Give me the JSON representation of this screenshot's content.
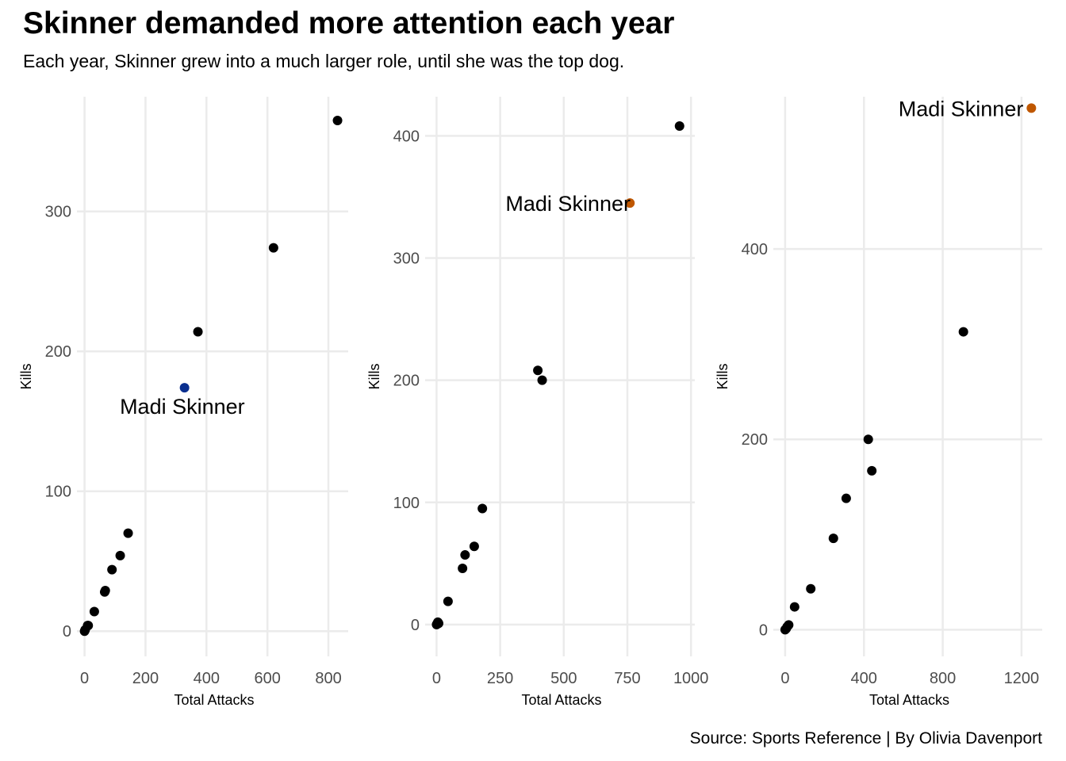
{
  "title": "Skinner demanded more attention each year",
  "subtitle": "Each year, Skinner grew into a much larger role, until she was the top dog.",
  "caption": "Source: Sports Reference | By Olivia Davenport",
  "colors": {
    "default_point": "#000000",
    "gridline": "#ebebeb"
  },
  "chart_data": [
    {
      "type": "scatter",
      "xlabel": "Total Attacks",
      "ylabel": "Kills",
      "xticks": [
        0,
        200,
        400,
        600,
        800
      ],
      "yticks": [
        0,
        100,
        200,
        300
      ],
      "xlim": [
        -25,
        865
      ],
      "ylim": [
        -18,
        382
      ],
      "points": [
        {
          "x": 0,
          "y": 0
        },
        {
          "x": 2,
          "y": 1
        },
        {
          "x": 10,
          "y": 4
        },
        {
          "x": 12,
          "y": 4
        },
        {
          "x": 32,
          "y": 14
        },
        {
          "x": 66,
          "y": 28
        },
        {
          "x": 68,
          "y": 29
        },
        {
          "x": 90,
          "y": 44
        },
        {
          "x": 117,
          "y": 54
        },
        {
          "x": 143,
          "y": 70
        },
        {
          "x": 328,
          "y": 174,
          "highlight": true
        },
        {
          "x": 372,
          "y": 214
        },
        {
          "x": 620,
          "y": 274
        },
        {
          "x": 830,
          "y": 365
        }
      ],
      "highlight_color": "#0a2f8f",
      "annotation": {
        "text": "Madi Skinner",
        "x": 328,
        "y": 174
      }
    },
    {
      "type": "scatter",
      "xlabel": "Total Attacks",
      "ylabel": "Kills",
      "xticks": [
        0,
        250,
        500,
        750,
        1000
      ],
      "yticks": [
        0,
        100,
        200,
        300,
        400
      ],
      "xlim": [
        -45,
        1015
      ],
      "ylim": [
        -26,
        432
      ],
      "points": [
        {
          "x": 0,
          "y": 0
        },
        {
          "x": 3,
          "y": 1
        },
        {
          "x": 5,
          "y": 2
        },
        {
          "x": 8,
          "y": 1
        },
        {
          "x": 45,
          "y": 19
        },
        {
          "x": 102,
          "y": 46
        },
        {
          "x": 112,
          "y": 57
        },
        {
          "x": 148,
          "y": 64
        },
        {
          "x": 180,
          "y": 95
        },
        {
          "x": 398,
          "y": 208
        },
        {
          "x": 415,
          "y": 200
        },
        {
          "x": 760,
          "y": 345,
          "highlight": true
        },
        {
          "x": 955,
          "y": 408
        }
      ],
      "highlight_color": "#bf5700",
      "annotation": {
        "text": "Madi Skinner",
        "x": 760,
        "y": 345
      }
    },
    {
      "type": "scatter",
      "xlabel": "Total Attacks",
      "ylabel": "Kills",
      "xticks": [
        0,
        400,
        800,
        1200
      ],
      "yticks": [
        0,
        200,
        400
      ],
      "xlim": [
        -60,
        1305
      ],
      "ylim": [
        -28,
        560
      ],
      "points": [
        {
          "x": 0,
          "y": 0
        },
        {
          "x": 5,
          "y": 1
        },
        {
          "x": 10,
          "y": 3
        },
        {
          "x": 18,
          "y": 5
        },
        {
          "x": 48,
          "y": 24
        },
        {
          "x": 130,
          "y": 43
        },
        {
          "x": 245,
          "y": 96
        },
        {
          "x": 310,
          "y": 138
        },
        {
          "x": 422,
          "y": 200
        },
        {
          "x": 440,
          "y": 167
        },
        {
          "x": 905,
          "y": 313
        },
        {
          "x": 1250,
          "y": 548,
          "highlight": true
        }
      ],
      "highlight_color": "#bf5700",
      "annotation": {
        "text": "Madi Skinner",
        "x": 1250,
        "y": 548
      }
    }
  ]
}
